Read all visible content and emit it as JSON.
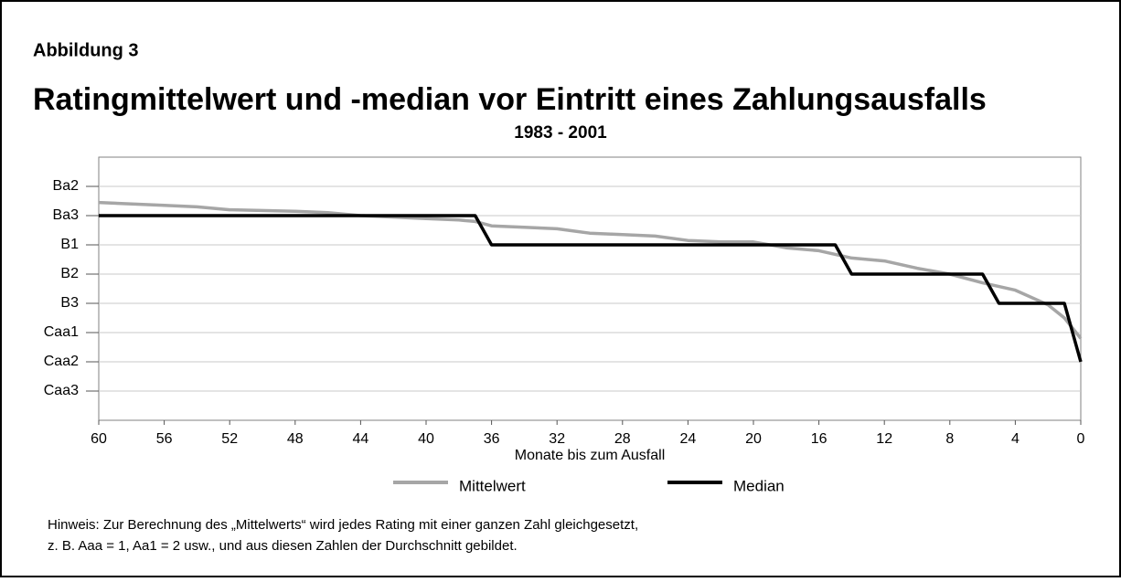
{
  "chart_data": {
    "type": "line",
    "label": "Abbildung 3",
    "title": "Ratingmittelwert und -median vor Eintritt eines Zahlungsausfalls",
    "subtitle": "1983 - 2001",
    "x_label": "Monate bis zum Ausfall",
    "note": [
      "Hinweis: Zur Berechnung des „Mittelwerts“ wird jedes Rating mit einer ganzen Zahl gleichgesetzt,",
      "z. B. Aaa = 1, Aa1 = 2 usw., und aus diesen Zahlen der Durchschnitt gebildet."
    ],
    "xlim": [
      60,
      0
    ],
    "xticks": [
      60,
      56,
      52,
      48,
      44,
      40,
      36,
      32,
      28,
      24,
      20,
      16,
      12,
      8,
      4,
      0
    ],
    "ylim": [
      20,
      11
    ],
    "yticks": [
      {
        "value": 12,
        "label": "Ba2"
      },
      {
        "value": 13,
        "label": "Ba3"
      },
      {
        "value": 14,
        "label": "B1"
      },
      {
        "value": 15,
        "label": "B2"
      },
      {
        "value": 16,
        "label": "B3"
      },
      {
        "value": 17,
        "label": "Caa1"
      },
      {
        "value": 18,
        "label": "Caa2"
      },
      {
        "value": 19,
        "label": "Caa3"
      }
    ],
    "grid": true,
    "legend": "bottom",
    "series": [
      {
        "name": "Mittelwert",
        "color": "#a6a6a6",
        "x": [
          60,
          56,
          54,
          52,
          48,
          46,
          44,
          40,
          38,
          37,
          36,
          34,
          32,
          30,
          28,
          26,
          24,
          22,
          20,
          18,
          16,
          14,
          12,
          10,
          8,
          6,
          4,
          2,
          1,
          0
        ],
        "values": [
          12.55,
          12.65,
          12.7,
          12.8,
          12.85,
          12.9,
          13.0,
          13.1,
          13.15,
          13.2,
          13.35,
          13.4,
          13.45,
          13.6,
          13.65,
          13.7,
          13.85,
          13.9,
          13.9,
          14.1,
          14.2,
          14.45,
          14.55,
          14.8,
          15.0,
          15.3,
          15.55,
          16.05,
          16.5,
          17.2
        ]
      },
      {
        "name": "Median",
        "color": "#000000",
        "x": [
          60,
          37,
          36,
          15,
          14,
          6,
          5,
          1,
          0
        ],
        "values": [
          13,
          13,
          14,
          14,
          15,
          15,
          16,
          16,
          18
        ]
      }
    ]
  }
}
